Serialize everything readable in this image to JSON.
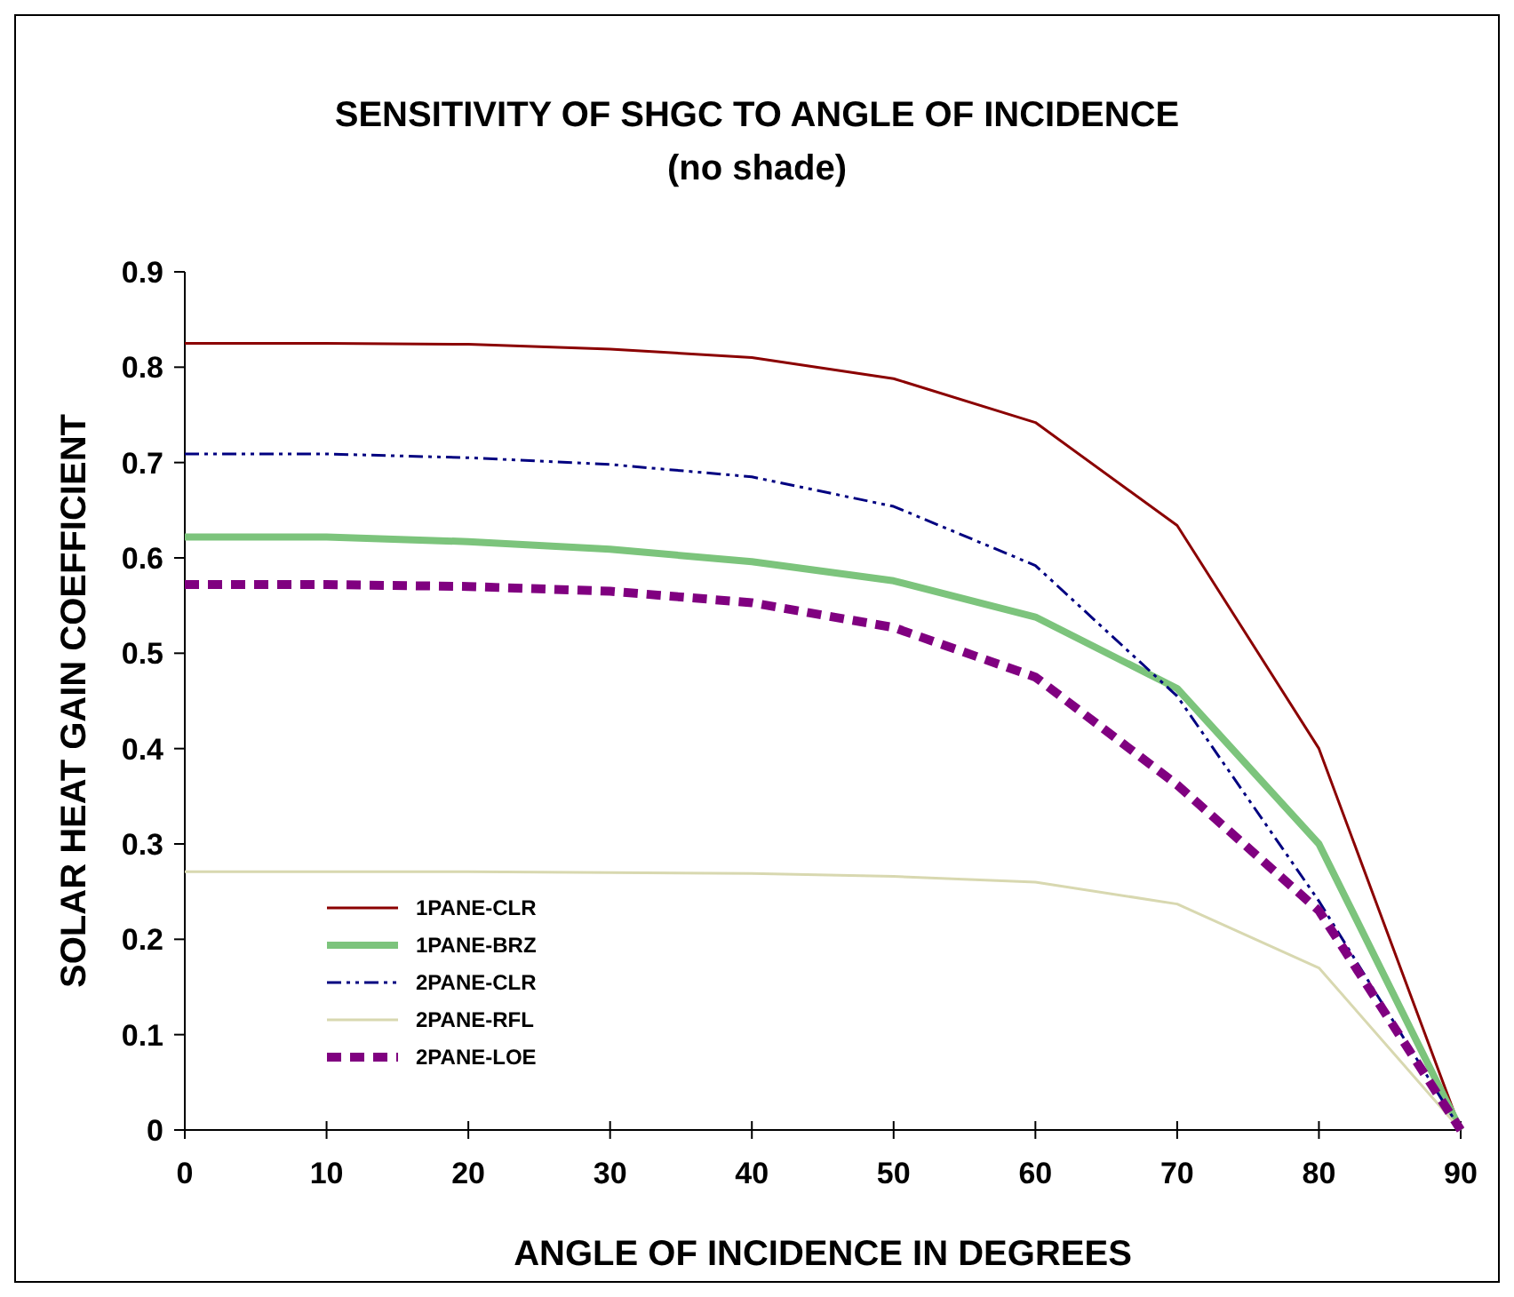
{
  "chart_data": {
    "type": "line",
    "title": "SENSITIVITY OF SHGC TO ANGLE OF INCIDENCE",
    "subtitle": "(no shade)",
    "xlabel": "ANGLE OF INCIDENCE IN DEGREES",
    "ylabel": "SOLAR HEAT GAIN COEFFICIENT",
    "x": [
      0,
      10,
      20,
      30,
      40,
      50,
      60,
      70,
      80,
      90
    ],
    "xlim": [
      0,
      90
    ],
    "xticks": [
      0,
      10,
      20,
      30,
      40,
      50,
      60,
      70,
      80,
      90
    ],
    "ylim": [
      0,
      0.9
    ],
    "yticks": [
      0,
      0.1,
      0.2,
      0.3,
      0.4,
      0.5,
      0.6,
      0.7,
      0.8,
      0.9
    ],
    "grid": false,
    "legend": "bottom left",
    "marker": "none",
    "series": [
      {
        "name": "1PANE-CLR",
        "color": "#8b0000",
        "line_style": "solid",
        "values": [
          0.825,
          0.825,
          0.824,
          0.819,
          0.81,
          0.788,
          0.742,
          0.634,
          0.4,
          0
        ]
      },
      {
        "name": "1PANE-BRZ",
        "color": "#7cc47c",
        "line_style": "solid",
        "values": [
          0.622,
          0.622,
          0.617,
          0.609,
          0.596,
          0.576,
          0.538,
          0.463,
          0.3,
          0
        ]
      },
      {
        "name": "2PANE-CLR",
        "color": "#000080",
        "line_style": "dashed",
        "values": [
          0.709,
          0.709,
          0.705,
          0.698,
          0.685,
          0.654,
          0.592,
          0.455,
          0.24,
          0
        ]
      },
      {
        "name": "2PANE-RFL",
        "color": "#d8d8b0",
        "line_style": "solid",
        "values": [
          0.271,
          0.271,
          0.271,
          0.27,
          0.269,
          0.266,
          0.26,
          0.237,
          0.17,
          0
        ]
      },
      {
        "name": "2PANE-LOE",
        "color": "#800080",
        "line_style": "dashed",
        "values": [
          0.572,
          0.572,
          0.57,
          0.565,
          0.553,
          0.527,
          0.475,
          0.362,
          0.23,
          0
        ]
      }
    ]
  }
}
